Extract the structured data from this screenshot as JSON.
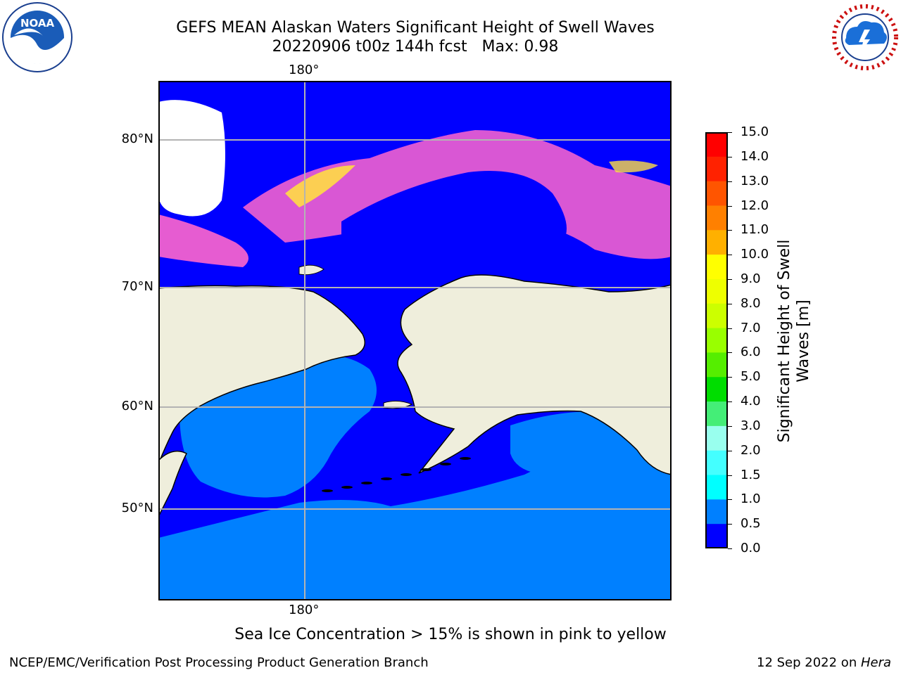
{
  "header": {
    "title_line1": "GEFS MEAN Alaskan Waters Significant Height of Swell Waves",
    "title_line2": "20220906 t00z 144h fcst   Max: 0.98"
  },
  "logos": {
    "left": {
      "name": "noaa-logo",
      "text": "NOAA"
    },
    "right": {
      "name": "nws-logo",
      "text": "NATIONAL WEATHER SERVICE"
    }
  },
  "map": {
    "lon_label_top": "180°",
    "lon_label_bottom": "180°",
    "lat_labels": [
      "80°N",
      "70°N",
      "60°N",
      "50°N"
    ],
    "colors": {
      "ocean_low": "#0000ff",
      "ocean_mid": "#0080ff",
      "land": "#efeedc",
      "ice_pink": "#ff66cc",
      "ice_yellow": "#ffdd44",
      "grid": "#b3b3b3"
    }
  },
  "colorbar": {
    "label": "Significant Height of Swell Waves [m]",
    "ticks": [
      "15.0",
      "14.0",
      "13.0",
      "12.0",
      "11.0",
      "10.0",
      "9.0",
      "8.0",
      "7.0",
      "6.0",
      "5.0",
      "4.0",
      "3.0",
      "2.0",
      "1.5",
      "1.0",
      "0.5",
      "0.0"
    ],
    "colors": [
      "#ff0000",
      "#ff2200",
      "#ff5500",
      "#ff8000",
      "#ffb000",
      "#ffff00",
      "#eeff00",
      "#ccff00",
      "#99ff00",
      "#55ee00",
      "#00dd00",
      "#44ee77",
      "#99ffee",
      "#44ffff",
      "#00ffff",
      "#0080ff",
      "#0000ff"
    ]
  },
  "note": "Sea Ice Concentration > 15% is shown in pink to yellow",
  "footer": {
    "left": "NCEP/EMC/Verification Post Processing Product Generation Branch",
    "right_prefix": "12 Sep 2022 on ",
    "right_host": "Hera"
  }
}
